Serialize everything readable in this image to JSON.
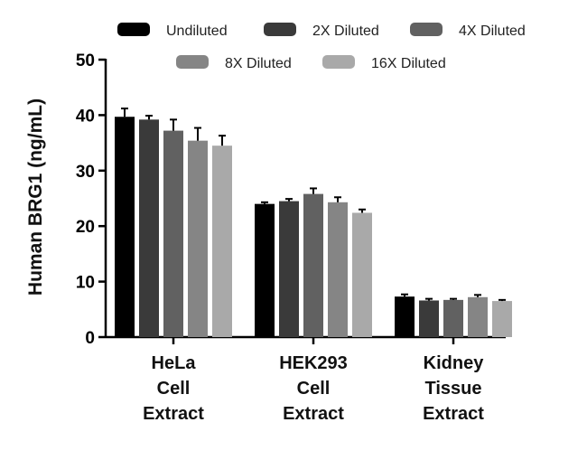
{
  "chart_data": {
    "type": "bar",
    "categories": [
      [
        "HeLa",
        "Cell",
        "Extract"
      ],
      [
        "HEK293",
        "Cell",
        "Extract"
      ],
      [
        "Kidney",
        "Tissue",
        "Extract"
      ]
    ],
    "ylabel": "Human BRG1 (ng/mL)",
    "xlabel": "",
    "ylim": [
      0,
      50
    ],
    "yticks": [
      0,
      10,
      20,
      30,
      40,
      50
    ],
    "legend_position": "top-center",
    "series": [
      {
        "name": "Undiluted",
        "color": "#000000",
        "values": [
          39.7,
          24.0,
          7.3
        ],
        "errors": [
          1.5,
          0.3,
          0.4
        ]
      },
      {
        "name": "2X Diluted",
        "color": "#3a3a3a",
        "values": [
          39.2,
          24.5,
          6.6
        ],
        "errors": [
          0.7,
          0.4,
          0.3
        ]
      },
      {
        "name": "4X Diluted",
        "color": "#616161",
        "values": [
          37.2,
          25.8,
          6.7
        ],
        "errors": [
          2.0,
          1.0,
          0.2
        ]
      },
      {
        "name": "8X Diluted",
        "color": "#858585",
        "values": [
          35.4,
          24.3,
          7.2
        ],
        "errors": [
          2.3,
          0.9,
          0.4
        ]
      },
      {
        "name": "16X Diluted",
        "color": "#a9a9a9",
        "values": [
          34.5,
          22.4,
          6.5
        ],
        "errors": [
          1.8,
          0.6,
          0.2
        ]
      }
    ]
  }
}
